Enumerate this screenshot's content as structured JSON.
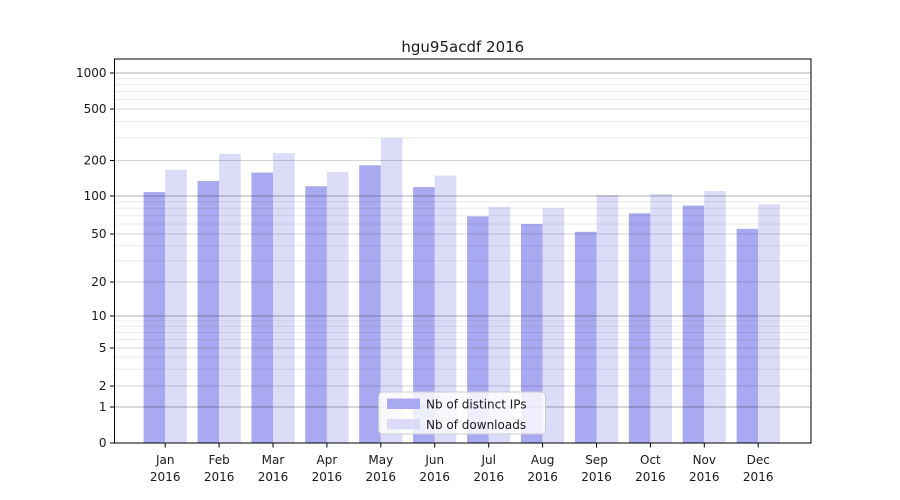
{
  "title": "hgu95acdf 2016",
  "colors": {
    "bar_ips": "#a9a9f1",
    "bar_downloads": "#dcdcf8",
    "grid_decade": "#b0b0b0",
    "grid_major": "#d6d6d6",
    "grid_minor": "#ebebeb",
    "axis": "#000000",
    "legend_border": "#cccccc",
    "legend_bg": "rgba(255,255,255,0.8)"
  },
  "chart_data": {
    "type": "bar",
    "title": "hgu95acdf 2016",
    "categories": [
      "Jan",
      "Feb",
      "Mar",
      "Apr",
      "May",
      "Jun",
      "Jul",
      "Aug",
      "Sep",
      "Oct",
      "Nov",
      "Dec"
    ],
    "year_label": "2016",
    "series": [
      {
        "name": "Nb of distinct IPs",
        "values": [
          108,
          134,
          158,
          121,
          182,
          119,
          69,
          60,
          52,
          73,
          84,
          55
        ]
      },
      {
        "name": "Nb of downloads",
        "values": [
          167,
          225,
          228,
          160,
          298,
          149,
          82,
          80,
          102,
          104,
          110,
          86
        ]
      }
    ],
    "y_ticks": [
      0,
      1,
      2,
      5,
      10,
      20,
      50,
      100,
      200,
      500,
      1000
    ],
    "y_scale": "symlog",
    "ylim_top_value": 1400,
    "grid": true,
    "legend_position": "lower center",
    "legend_labels": [
      "Nb of distinct IPs",
      "Nb of downloads"
    ]
  }
}
